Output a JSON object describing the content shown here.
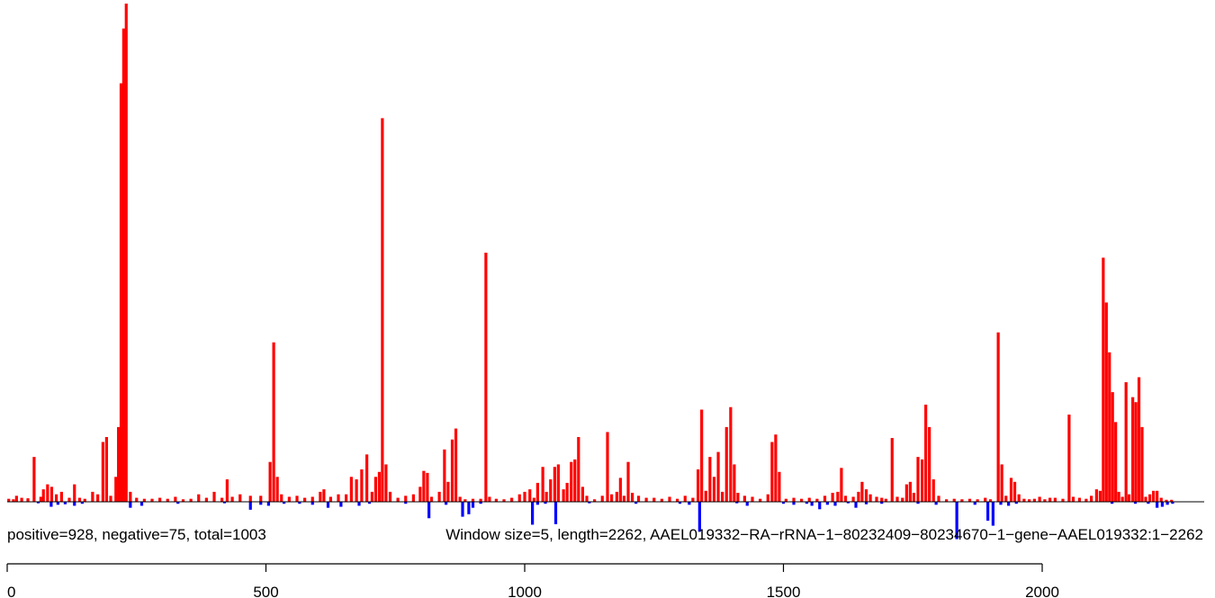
{
  "chart_data": {
    "type": "bar",
    "annotations": [
      "positive=928, negative=75, total=1003",
      "Window size=5, length=2262, AAEL019332−RA−rRNA−1−80232409−80234670−1−gene−AAEL019332:1−2262"
    ],
    "x_ticks": [
      0,
      500,
      1000,
      1500,
      2000
    ],
    "xlim": [
      0,
      2262
    ],
    "positive_color": "#ff0000",
    "negative_color": "#0000ff",
    "y_axis": "none",
    "legend": "none",
    "grid": false,
    "units": "relative read-count per window (approximate, max positive = 1.0)",
    "positive_peaks": [
      [
        3,
        0.006
      ],
      [
        12,
        0.005
      ],
      [
        18,
        0.012
      ],
      [
        28,
        0.008
      ],
      [
        40,
        0.007
      ],
      [
        52,
        0.09
      ],
      [
        65,
        0.01
      ],
      [
        70,
        0.025
      ],
      [
        78,
        0.035
      ],
      [
        86,
        0.03
      ],
      [
        95,
        0.015
      ],
      [
        105,
        0.02
      ],
      [
        120,
        0.008
      ],
      [
        130,
        0.035
      ],
      [
        140,
        0.008
      ],
      [
        150,
        0.006
      ],
      [
        165,
        0.02
      ],
      [
        175,
        0.015
      ],
      [
        185,
        0.12
      ],
      [
        192,
        0.13
      ],
      [
        200,
        0.012
      ],
      [
        210,
        0.05
      ],
      [
        215,
        0.15
      ],
      [
        220,
        0.84
      ],
      [
        225,
        0.95
      ],
      [
        230,
        1.0
      ],
      [
        238,
        0.02
      ],
      [
        250,
        0.008
      ],
      [
        265,
        0.006
      ],
      [
        280,
        0.006
      ],
      [
        295,
        0.008
      ],
      [
        310,
        0.006
      ],
      [
        325,
        0.01
      ],
      [
        340,
        0.005
      ],
      [
        355,
        0.006
      ],
      [
        370,
        0.015
      ],
      [
        385,
        0.008
      ],
      [
        400,
        0.02
      ],
      [
        415,
        0.008
      ],
      [
        425,
        0.045
      ],
      [
        435,
        0.01
      ],
      [
        450,
        0.015
      ],
      [
        470,
        0.012
      ],
      [
        490,
        0.012
      ],
      [
        508,
        0.08
      ],
      [
        515,
        0.32
      ],
      [
        522,
        0.05
      ],
      [
        530,
        0.015
      ],
      [
        545,
        0.01
      ],
      [
        560,
        0.012
      ],
      [
        575,
        0.008
      ],
      [
        590,
        0.01
      ],
      [
        605,
        0.02
      ],
      [
        612,
        0.025
      ],
      [
        625,
        0.01
      ],
      [
        640,
        0.015
      ],
      [
        655,
        0.015
      ],
      [
        665,
        0.05
      ],
      [
        675,
        0.045
      ],
      [
        685,
        0.065
      ],
      [
        695,
        0.095
      ],
      [
        705,
        0.02
      ],
      [
        712,
        0.05
      ],
      [
        719,
        0.06
      ],
      [
        725,
        0.77
      ],
      [
        732,
        0.075
      ],
      [
        740,
        0.02
      ],
      [
        755,
        0.008
      ],
      [
        770,
        0.012
      ],
      [
        785,
        0.015
      ],
      [
        798,
        0.03
      ],
      [
        805,
        0.062
      ],
      [
        812,
        0.058
      ],
      [
        820,
        0.01
      ],
      [
        835,
        0.02
      ],
      [
        845,
        0.105
      ],
      [
        852,
        0.04
      ],
      [
        860,
        0.125
      ],
      [
        867,
        0.147
      ],
      [
        875,
        0.01
      ],
      [
        885,
        0.005
      ],
      [
        900,
        0.006
      ],
      [
        915,
        0.006
      ],
      [
        925,
        0.5
      ],
      [
        932,
        0.01
      ],
      [
        945,
        0.006
      ],
      [
        960,
        0.005
      ],
      [
        975,
        0.008
      ],
      [
        990,
        0.015
      ],
      [
        1000,
        0.02
      ],
      [
        1010,
        0.025
      ],
      [
        1018,
        0.008
      ],
      [
        1025,
        0.038
      ],
      [
        1035,
        0.07
      ],
      [
        1042,
        0.02
      ],
      [
        1050,
        0.045
      ],
      [
        1058,
        0.07
      ],
      [
        1065,
        0.075
      ],
      [
        1075,
        0.025
      ],
      [
        1082,
        0.038
      ],
      [
        1090,
        0.08
      ],
      [
        1097,
        0.085
      ],
      [
        1104,
        0.13
      ],
      [
        1112,
        0.03
      ],
      [
        1120,
        0.012
      ],
      [
        1135,
        0.005
      ],
      [
        1150,
        0.012
      ],
      [
        1160,
        0.14
      ],
      [
        1168,
        0.015
      ],
      [
        1178,
        0.02
      ],
      [
        1185,
        0.048
      ],
      [
        1192,
        0.012
      ],
      [
        1200,
        0.08
      ],
      [
        1208,
        0.018
      ],
      [
        1220,
        0.012
      ],
      [
        1235,
        0.008
      ],
      [
        1250,
        0.008
      ],
      [
        1265,
        0.006
      ],
      [
        1280,
        0.01
      ],
      [
        1295,
        0.006
      ],
      [
        1310,
        0.012
      ],
      [
        1325,
        0.008
      ],
      [
        1335,
        0.065
      ],
      [
        1342,
        0.185
      ],
      [
        1350,
        0.022
      ],
      [
        1358,
        0.09
      ],
      [
        1366,
        0.05
      ],
      [
        1374,
        0.1
      ],
      [
        1382,
        0.02
      ],
      [
        1390,
        0.15
      ],
      [
        1398,
        0.19
      ],
      [
        1405,
        0.075
      ],
      [
        1412,
        0.018
      ],
      [
        1425,
        0.012
      ],
      [
        1440,
        0.01
      ],
      [
        1455,
        0.006
      ],
      [
        1470,
        0.015
      ],
      [
        1478,
        0.12
      ],
      [
        1485,
        0.135
      ],
      [
        1492,
        0.06
      ],
      [
        1505,
        0.006
      ],
      [
        1520,
        0.008
      ],
      [
        1535,
        0.006
      ],
      [
        1550,
        0.008
      ],
      [
        1565,
        0.006
      ],
      [
        1580,
        0.012
      ],
      [
        1595,
        0.018
      ],
      [
        1605,
        0.02
      ],
      [
        1612,
        0.068
      ],
      [
        1620,
        0.012
      ],
      [
        1635,
        0.01
      ],
      [
        1645,
        0.02
      ],
      [
        1652,
        0.04
      ],
      [
        1660,
        0.025
      ],
      [
        1668,
        0.015
      ],
      [
        1680,
        0.01
      ],
      [
        1690,
        0.008
      ],
      [
        1698,
        0.006
      ],
      [
        1710,
        0.128
      ],
      [
        1720,
        0.01
      ],
      [
        1730,
        0.008
      ],
      [
        1738,
        0.035
      ],
      [
        1745,
        0.04
      ],
      [
        1752,
        0.018
      ],
      [
        1760,
        0.09
      ],
      [
        1768,
        0.085
      ],
      [
        1775,
        0.195
      ],
      [
        1782,
        0.15
      ],
      [
        1790,
        0.045
      ],
      [
        1800,
        0.012
      ],
      [
        1815,
        0.005
      ],
      [
        1830,
        0.006
      ],
      [
        1845,
        0.005
      ],
      [
        1860,
        0.006
      ],
      [
        1875,
        0.005
      ],
      [
        1890,
        0.008
      ],
      [
        1900,
        0.005
      ],
      [
        1915,
        0.34
      ],
      [
        1922,
        0.075
      ],
      [
        1930,
        0.012
      ],
      [
        1940,
        0.048
      ],
      [
        1947,
        0.04
      ],
      [
        1955,
        0.015
      ],
      [
        1965,
        0.006
      ],
      [
        1975,
        0.005
      ],
      [
        1985,
        0.006
      ],
      [
        1995,
        0.01
      ],
      [
        2005,
        0.005
      ],
      [
        2015,
        0.008
      ],
      [
        2025,
        0.008
      ],
      [
        2040,
        0.006
      ],
      [
        2052,
        0.175
      ],
      [
        2060,
        0.01
      ],
      [
        2072,
        0.008
      ],
      [
        2085,
        0.006
      ],
      [
        2095,
        0.012
      ],
      [
        2105,
        0.025
      ],
      [
        2112,
        0.022
      ],
      [
        2118,
        0.49
      ],
      [
        2124,
        0.4
      ],
      [
        2130,
        0.3
      ],
      [
        2136,
        0.22
      ],
      [
        2142,
        0.16
      ],
      [
        2148,
        0.02
      ],
      [
        2155,
        0.01
      ],
      [
        2162,
        0.24
      ],
      [
        2168,
        0.015
      ],
      [
        2175,
        0.21
      ],
      [
        2181,
        0.2
      ],
      [
        2187,
        0.25
      ],
      [
        2193,
        0.15
      ],
      [
        2200,
        0.01
      ],
      [
        2208,
        0.015
      ],
      [
        2215,
        0.022
      ],
      [
        2222,
        0.022
      ],
      [
        2230,
        0.008
      ],
      [
        2240,
        0.004
      ],
      [
        2250,
        0.004
      ]
    ],
    "negative_peaks": [
      [
        60,
        0.003
      ],
      [
        85,
        0.01
      ],
      [
        98,
        0.006
      ],
      [
        112,
        0.005
      ],
      [
        130,
        0.008
      ],
      [
        145,
        0.004
      ],
      [
        238,
        0.012
      ],
      [
        260,
        0.008
      ],
      [
        330,
        0.004
      ],
      [
        420,
        0.003
      ],
      [
        470,
        0.016
      ],
      [
        490,
        0.006
      ],
      [
        505,
        0.008
      ],
      [
        535,
        0.004
      ],
      [
        565,
        0.004
      ],
      [
        590,
        0.006
      ],
      [
        620,
        0.012
      ],
      [
        645,
        0.01
      ],
      [
        680,
        0.008
      ],
      [
        700,
        0.004
      ],
      [
        770,
        0.004
      ],
      [
        815,
        0.033
      ],
      [
        848,
        0.006
      ],
      [
        880,
        0.03
      ],
      [
        892,
        0.025
      ],
      [
        900,
        0.012
      ],
      [
        915,
        0.004
      ],
      [
        1015,
        0.046
      ],
      [
        1025,
        0.006
      ],
      [
        1040,
        0.004
      ],
      [
        1060,
        0.045
      ],
      [
        1125,
        0.003
      ],
      [
        1215,
        0.004
      ],
      [
        1300,
        0.004
      ],
      [
        1318,
        0.006
      ],
      [
        1338,
        0.06
      ],
      [
        1410,
        0.003
      ],
      [
        1430,
        0.008
      ],
      [
        1500,
        0.004
      ],
      [
        1520,
        0.006
      ],
      [
        1545,
        0.004
      ],
      [
        1555,
        0.008
      ],
      [
        1570,
        0.015
      ],
      [
        1585,
        0.006
      ],
      [
        1600,
        0.008
      ],
      [
        1625,
        0.003
      ],
      [
        1640,
        0.012
      ],
      [
        1660,
        0.005
      ],
      [
        1690,
        0.004
      ],
      [
        1760,
        0.004
      ],
      [
        1795,
        0.006
      ],
      [
        1835,
        0.075
      ],
      [
        1870,
        0.006
      ],
      [
        1895,
        0.038
      ],
      [
        1905,
        0.048
      ],
      [
        1920,
        0.006
      ],
      [
        1935,
        0.008
      ],
      [
        1950,
        0.004
      ],
      [
        2135,
        0.004
      ],
      [
        2180,
        0.004
      ],
      [
        2205,
        0.004
      ],
      [
        2222,
        0.012
      ],
      [
        2232,
        0.01
      ],
      [
        2242,
        0.006
      ],
      [
        2252,
        0.004
      ]
    ]
  }
}
